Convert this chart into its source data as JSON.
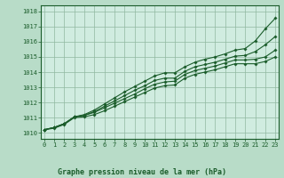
{
  "title": "Graphe pression niveau de la mer (hPa)",
  "background_color": "#b8dcc8",
  "plot_bg_color": "#d0ece0",
  "grid_color": "#90b8a0",
  "line_color": "#1a5c2a",
  "x_ticks": [
    0,
    1,
    2,
    3,
    4,
    5,
    6,
    7,
    8,
    9,
    10,
    11,
    12,
    13,
    14,
    15,
    16,
    17,
    18,
    19,
    20,
    21,
    22,
    23
  ],
  "y_ticks": [
    1010,
    1011,
    1012,
    1013,
    1014,
    1015,
    1016,
    1017,
    1018
  ],
  "ylim": [
    1009.6,
    1018.4
  ],
  "xlim": [
    -0.3,
    23.3
  ],
  "series": [
    [
      1010.2,
      1010.3,
      1010.55,
      1011.0,
      1011.05,
      1011.2,
      1011.45,
      1011.75,
      1012.05,
      1012.35,
      1012.65,
      1012.95,
      1013.1,
      1013.15,
      1013.6,
      1013.85,
      1014.0,
      1014.15,
      1014.35,
      1014.55,
      1014.55,
      1014.55,
      1014.7,
      1015.0
    ],
    [
      1010.2,
      1010.35,
      1010.6,
      1011.05,
      1011.15,
      1011.35,
      1011.65,
      1011.95,
      1012.25,
      1012.55,
      1012.9,
      1013.2,
      1013.35,
      1013.4,
      1013.85,
      1014.1,
      1014.25,
      1014.4,
      1014.6,
      1014.8,
      1014.8,
      1014.85,
      1015.0,
      1015.45
    ],
    [
      1010.2,
      1010.35,
      1010.6,
      1011.05,
      1011.15,
      1011.4,
      1011.75,
      1012.1,
      1012.45,
      1012.8,
      1013.1,
      1013.45,
      1013.6,
      1013.6,
      1014.05,
      1014.35,
      1014.5,
      1014.65,
      1014.85,
      1015.05,
      1015.1,
      1015.35,
      1015.8,
      1016.35
    ],
    [
      1010.2,
      1010.35,
      1010.6,
      1011.05,
      1011.2,
      1011.5,
      1011.9,
      1012.3,
      1012.7,
      1013.05,
      1013.4,
      1013.75,
      1013.95,
      1013.95,
      1014.35,
      1014.65,
      1014.85,
      1015.0,
      1015.2,
      1015.45,
      1015.55,
      1016.05,
      1016.85,
      1017.55
    ]
  ]
}
